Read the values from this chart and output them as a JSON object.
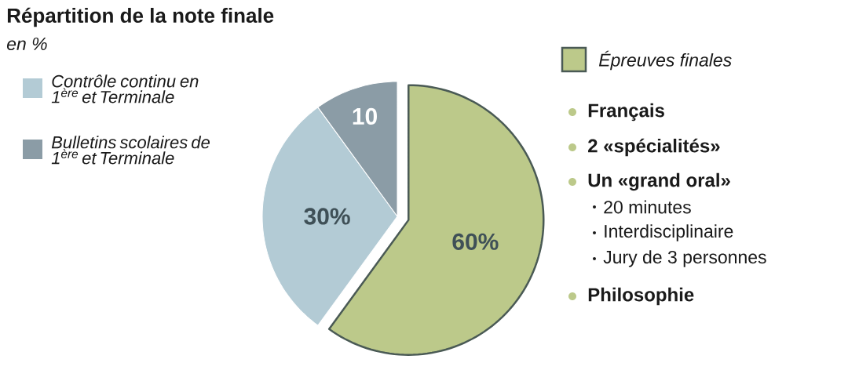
{
  "chart_data": {
    "type": "pie",
    "title": "Répartition de la note finale",
    "subtitle": "en %",
    "categories": [
      "Épreuves finales",
      "Contrôle continu en 1$^{ère}$ et Terminale",
      "Bulletins scolaires de 1$^{ère}$ et Terminale"
    ],
    "values": [
      60,
      30,
      10
    ],
    "colors": [
      "#bcc98a",
      "#b3cbd5",
      "#8b9ca6"
    ],
    "value_labels": [
      "60%",
      "30%",
      "10"
    ],
    "legend": "left",
    "annotations": [
      "Français",
      "2 «spécialités»",
      "Un «grand oral»",
      "20 minutes",
      "Interdisciplinaire",
      "Jury de 3 personnes",
      "Philosophie"
    ]
  }
}
